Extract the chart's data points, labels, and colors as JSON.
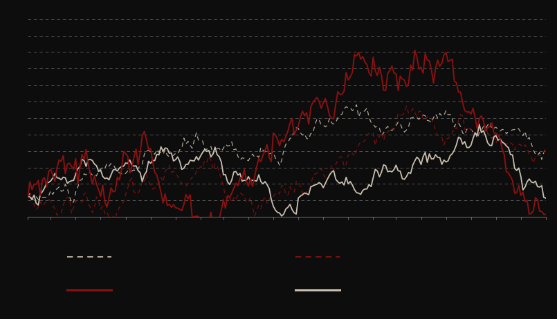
{
  "n_points": 250,
  "bg_color": "#0d0d0d",
  "plot_bg_color": "#0d0d0d",
  "grid_color": "#666666",
  "line_dark_dashed_color": "#b0a898",
  "line_darkred_dashed_color": "#7a1010",
  "line_darkred_solid_color": "#8b1010",
  "line_beige_solid_color": "#c8bfb0",
  "seed": 42,
  "figsize": [
    8.05,
    4.62
  ],
  "dpi": 100
}
